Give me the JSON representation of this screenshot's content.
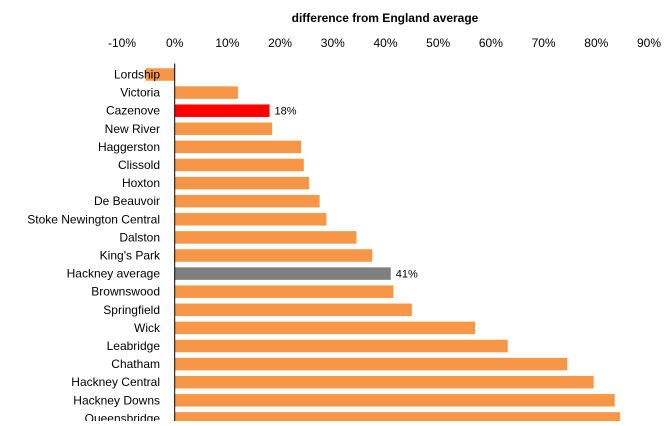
{
  "chart_data": {
    "type": "bar",
    "orientation": "horizontal",
    "title": "difference from England average",
    "xlim": [
      -10,
      90
    ],
    "xticks": [
      -10,
      0,
      10,
      20,
      30,
      40,
      50,
      60,
      70,
      80,
      90
    ],
    "tick_suffix": "%",
    "axis_position": "top",
    "grid": false,
    "categories": [
      "Lordship",
      "Victoria",
      "Cazenove",
      "New River",
      "Haggerston",
      "Clissold",
      "Hoxton",
      "De Beauvoir",
      "Stoke Newington Central",
      "Dalston",
      "King's Park",
      "Hackney average",
      "Brownswood",
      "Springfield",
      "Wick",
      "Leabridge",
      "Chatham",
      "Hackney Central",
      "Hackney Downs",
      "Queensbridge"
    ],
    "values": [
      -5.5,
      12,
      18,
      18.5,
      24,
      24.5,
      25.5,
      27.5,
      28.8,
      34.5,
      37.5,
      41,
      41.5,
      45,
      57,
      63.2,
      74.5,
      79.5,
      83.5,
      84.5
    ],
    "colors": {
      "default": "#F79646",
      "highlight": "#FF0000",
      "average": "#808080"
    },
    "highlight_categories": [
      "Cazenove"
    ],
    "average_categories": [
      "Hackney average"
    ],
    "data_labels": [
      {
        "category": "Cazenove",
        "text": "18%"
      },
      {
        "category": "Hackney average",
        "text": "41%"
      }
    ]
  }
}
